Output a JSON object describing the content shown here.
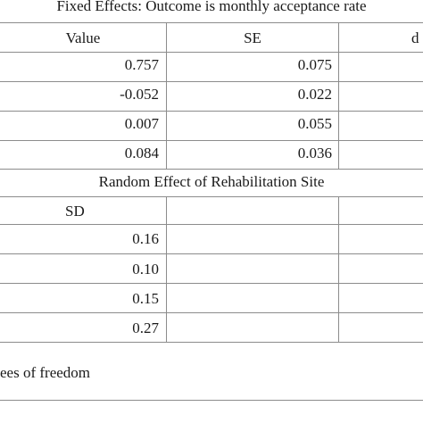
{
  "fixed_effects": {
    "heading": "Fixed Effects: Outcome is monthly acceptance rate",
    "columns": [
      "Value",
      "SE",
      "d"
    ],
    "rows": [
      {
        "value": "0.757",
        "se": "0.075"
      },
      {
        "value": "-0.052",
        "se": "0.022"
      },
      {
        "value": "0.007",
        "se": "0.055"
      },
      {
        "value": "0.084",
        "se": "0.036"
      }
    ]
  },
  "random_effects": {
    "heading": "Random Effect of Rehabilitation Site",
    "column": "SD",
    "rows": [
      {
        "sd": "0.16"
      },
      {
        "sd": "0.10"
      },
      {
        "sd": "0.15"
      },
      {
        "sd": "0.27"
      }
    ]
  },
  "footnote": "ees of freedom"
}
